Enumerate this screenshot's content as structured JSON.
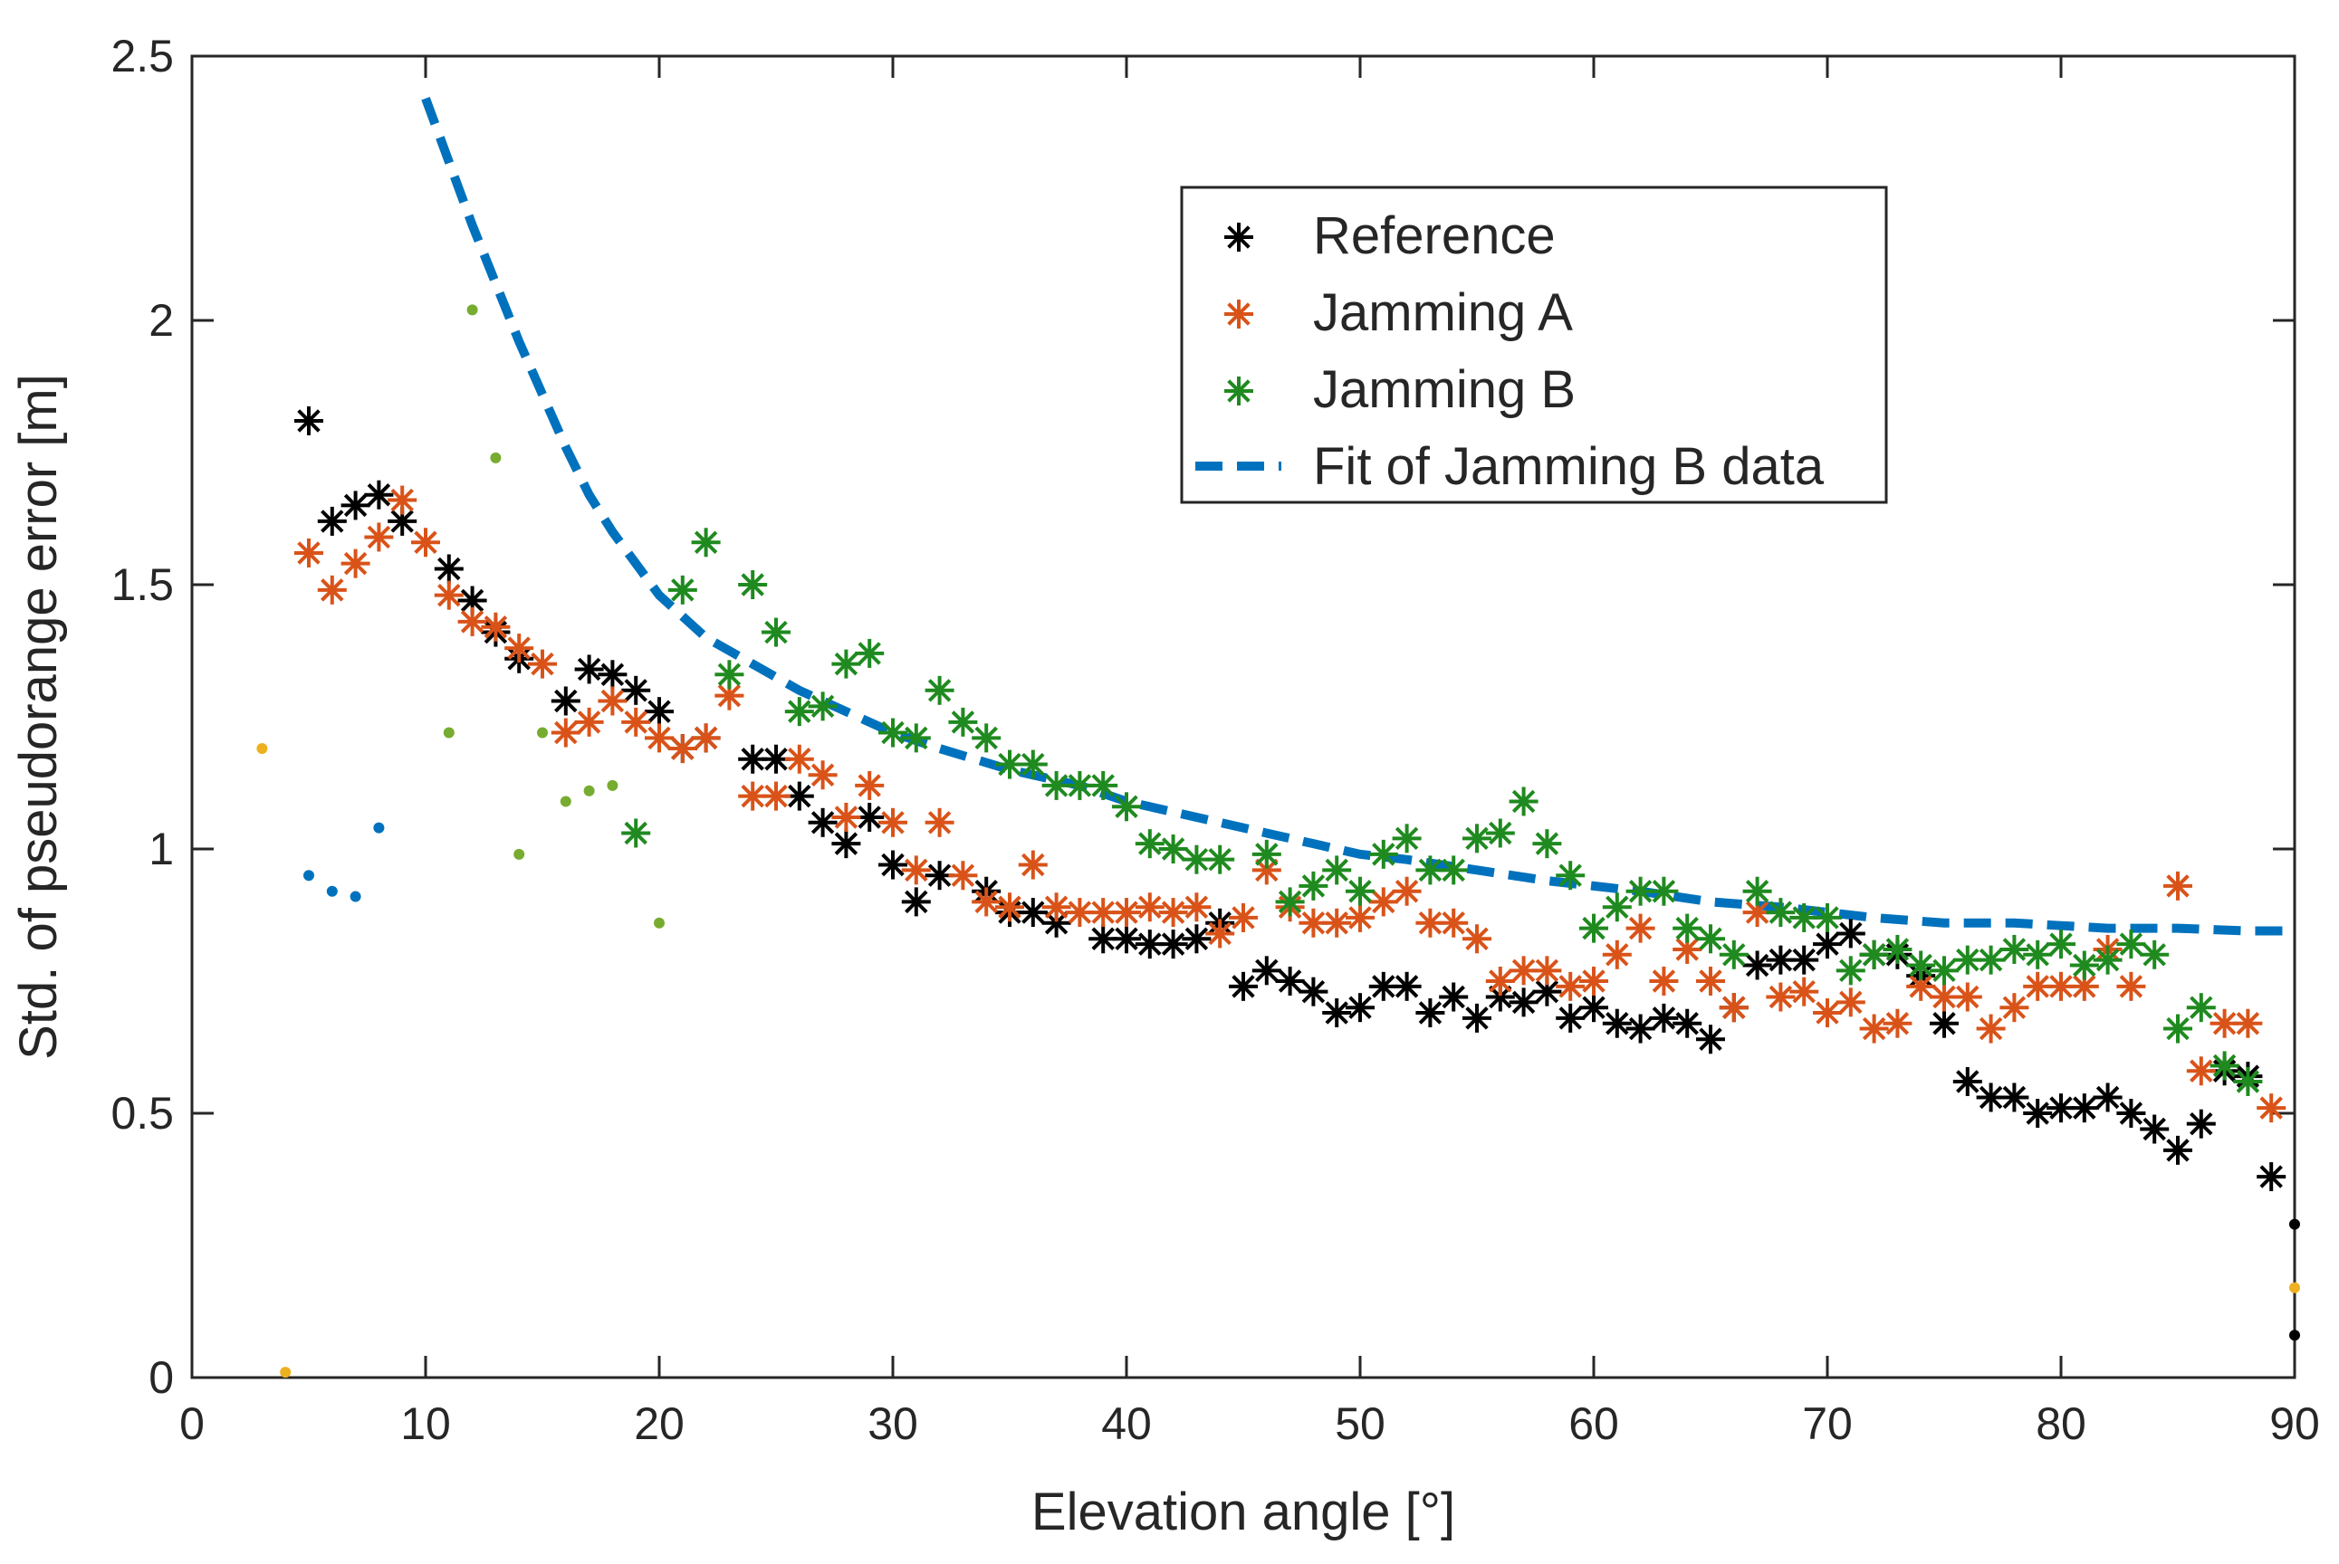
{
  "chart_data": {
    "type": "scatter",
    "xlabel": "Elevation angle [°]",
    "ylabel": "Std. of pseudorange error [m]",
    "xlim": [
      0,
      90
    ],
    "ylim": [
      0,
      2.5
    ],
    "xticks": [
      "0",
      "10",
      "20",
      "30",
      "40",
      "50",
      "60",
      "70",
      "80",
      "90"
    ],
    "yticks": [
      "0",
      "0.5",
      "1",
      "1.5",
      "2",
      "2.5"
    ],
    "grid": false,
    "legend_position": "top-right",
    "colors": {
      "reference": "#000000",
      "jamming_a": "#D95319",
      "jamming_b": "#1F8A1F",
      "fit": "#0072BD",
      "yellow": "#EDB120",
      "lightgreen": "#77AC30"
    },
    "series": [
      {
        "name": "Reference",
        "marker": "asterisk",
        "color": "#000000",
        "x": [
          5,
          6,
          7,
          8,
          9,
          11,
          12,
          13,
          14,
          16,
          17,
          18,
          19,
          20,
          21,
          22,
          24,
          25,
          26,
          27,
          28,
          29,
          30,
          31,
          32,
          34,
          35,
          36,
          37,
          39,
          40,
          41,
          42,
          43,
          44,
          45,
          46,
          47,
          48,
          49,
          50,
          51,
          52,
          53,
          54,
          55,
          56,
          57,
          58,
          59,
          60,
          61,
          62,
          63,
          64,
          65,
          66,
          67,
          68,
          69,
          70,
          71,
          72,
          73,
          74,
          75,
          76,
          77,
          78,
          79,
          80,
          81,
          82,
          83,
          84,
          85,
          86,
          87,
          88,
          89
        ],
        "y": [
          1.81,
          1.62,
          1.65,
          1.67,
          1.62,
          1.53,
          1.47,
          1.41,
          1.36,
          1.28,
          1.34,
          1.33,
          1.3,
          1.26,
          1.19,
          1.21,
          1.17,
          1.17,
          1.1,
          1.05,
          1.01,
          1.06,
          0.97,
          0.9,
          0.95,
          0.92,
          0.88,
          0.88,
          0.86,
          0.83,
          0.83,
          0.82,
          0.82,
          0.83,
          0.86,
          0.74,
          0.77,
          0.75,
          0.73,
          0.69,
          0.7,
          0.74,
          0.74,
          0.69,
          0.72,
          0.68,
          0.72,
          0.71,
          0.73,
          0.68,
          0.7,
          0.67,
          0.66,
          0.68,
          0.67,
          0.64,
          0.7,
          0.78,
          0.79,
          0.79,
          0.82,
          0.84,
          0.8,
          0.8,
          0.76,
          0.67,
          0.56,
          0.53,
          0.53,
          0.5,
          0.51,
          0.51,
          0.53,
          0.5,
          0.47,
          0.43,
          0.48,
          0.58,
          0.57,
          0.38
        ]
      },
      {
        "name": "Jamming A",
        "marker": "asterisk",
        "color": "#D95319",
        "x": [
          5,
          6,
          7,
          8,
          9,
          10,
          11,
          12,
          13,
          14,
          15,
          16,
          17,
          18,
          19,
          20,
          21,
          22,
          23,
          24,
          25,
          26,
          27,
          28,
          29,
          30,
          31,
          32,
          33,
          34,
          35,
          36,
          37,
          38,
          39,
          40,
          41,
          42,
          43,
          44,
          45,
          46,
          47,
          48,
          49,
          50,
          51,
          52,
          53,
          54,
          55,
          56,
          57,
          58,
          59,
          60,
          61,
          62,
          63,
          64,
          65,
          66,
          67,
          68,
          69,
          70,
          71,
          72,
          73,
          74,
          75,
          76,
          77,
          78,
          79,
          80,
          81,
          82,
          83,
          85,
          86,
          87,
          88,
          89
        ],
        "y": [
          1.56,
          1.49,
          1.54,
          1.59,
          1.66,
          1.58,
          1.48,
          1.43,
          1.42,
          1.38,
          1.35,
          1.22,
          1.24,
          1.28,
          1.24,
          1.21,
          1.19,
          1.21,
          1.29,
          1.1,
          1.1,
          1.17,
          1.14,
          1.06,
          1.12,
          1.05,
          0.96,
          1.05,
          0.95,
          0.9,
          0.89,
          0.97,
          0.89,
          0.88,
          0.88,
          0.88,
          0.89,
          0.88,
          0.89,
          0.84,
          0.87,
          0.96,
          0.89,
          0.86,
          0.86,
          0.87,
          0.9,
          0.92,
          0.86,
          0.86,
          0.83,
          0.75,
          0.77,
          0.77,
          0.74,
          0.75,
          0.8,
          0.85,
          0.75,
          0.81,
          0.75,
          0.7,
          0.88,
          0.72,
          0.73,
          0.69,
          0.71,
          0.66,
          0.67,
          0.74,
          0.72,
          0.72,
          0.66,
          0.7,
          0.74,
          0.74,
          0.74,
          0.81,
          0.74,
          0.93,
          0.58,
          0.67,
          0.67,
          0.51
        ]
      },
      {
        "name": "Jamming B",
        "marker": "asterisk",
        "color": "#1F8A1F",
        "x": [
          19,
          21,
          22,
          23,
          24,
          25,
          26,
          27,
          28,
          29,
          30,
          31,
          32,
          33,
          34,
          35,
          36,
          37,
          38,
          39,
          40,
          41,
          42,
          43,
          44,
          46,
          47,
          48,
          49,
          50,
          51,
          52,
          53,
          54,
          55,
          56,
          57,
          58,
          59,
          60,
          61,
          62,
          63,
          64,
          65,
          66,
          67,
          68,
          69,
          70,
          71,
          72,
          73,
          74,
          75,
          76,
          77,
          78,
          79,
          80,
          81,
          82,
          83,
          84,
          85,
          86,
          87,
          88
        ],
        "y": [
          1.03,
          1.49,
          1.58,
          1.33,
          1.5,
          1.41,
          1.26,
          1.27,
          1.35,
          1.37,
          1.22,
          1.21,
          1.3,
          1.24,
          1.21,
          1.16,
          1.16,
          1.12,
          1.12,
          1.12,
          1.08,
          1.01,
          1.0,
          0.98,
          0.98,
          0.99,
          0.9,
          0.93,
          0.96,
          0.92,
          0.99,
          1.02,
          0.96,
          0.96,
          1.02,
          1.03,
          1.09,
          1.01,
          0.95,
          0.85,
          0.89,
          0.92,
          0.92,
          0.85,
          0.83,
          0.8,
          0.92,
          0.88,
          0.87,
          0.87,
          0.77,
          0.8,
          0.81,
          0.78,
          0.77,
          0.79,
          0.79,
          0.81,
          0.8,
          0.82,
          0.78,
          0.79,
          0.82,
          0.8,
          0.66,
          0.7,
          0.59,
          0.56
        ]
      },
      {
        "name": "Fit of Jamming B data",
        "line_style": "dashed",
        "color": "#0072BD",
        "x": [
          10,
          11,
          12,
          13,
          14,
          15,
          16,
          17,
          18,
          19,
          20,
          22,
          24,
          26,
          28,
          30,
          32,
          35,
          38,
          40,
          42,
          45,
          48,
          50,
          52,
          55,
          58,
          60,
          62,
          65,
          68,
          70,
          72,
          75,
          78,
          80,
          82,
          85,
          88,
          90
        ],
        "y": [
          2.42,
          2.3,
          2.18,
          2.07,
          1.96,
          1.86,
          1.76,
          1.67,
          1.6,
          1.54,
          1.48,
          1.4,
          1.35,
          1.3,
          1.26,
          1.22,
          1.19,
          1.15,
          1.12,
          1.09,
          1.07,
          1.04,
          1.01,
          0.99,
          0.98,
          0.96,
          0.94,
          0.93,
          0.92,
          0.9,
          0.89,
          0.88,
          0.87,
          0.86,
          0.86,
          0.855,
          0.85,
          0.85,
          0.845,
          0.845
        ]
      }
    ],
    "extra_points": [
      {
        "color": "#EDB120",
        "x": [
          3,
          4,
          90
        ],
        "y": [
          1.19,
          0.01,
          0.17
        ]
      },
      {
        "color": "#0072BD",
        "x": [
          5,
          6,
          7,
          8
        ],
        "y": [
          0.95,
          0.92,
          0.91,
          1.04
        ]
      },
      {
        "color": "#77AC30",
        "x": [
          11,
          12,
          13,
          14,
          15,
          16,
          17,
          18,
          20
        ],
        "y": [
          1.22,
          2.02,
          1.74,
          0.99,
          1.22,
          1.09,
          1.11,
          1.12,
          0.86
        ]
      },
      {
        "color": "#000000",
        "x": [
          90,
          90
        ],
        "y": [
          0.29,
          0.08
        ]
      }
    ]
  }
}
